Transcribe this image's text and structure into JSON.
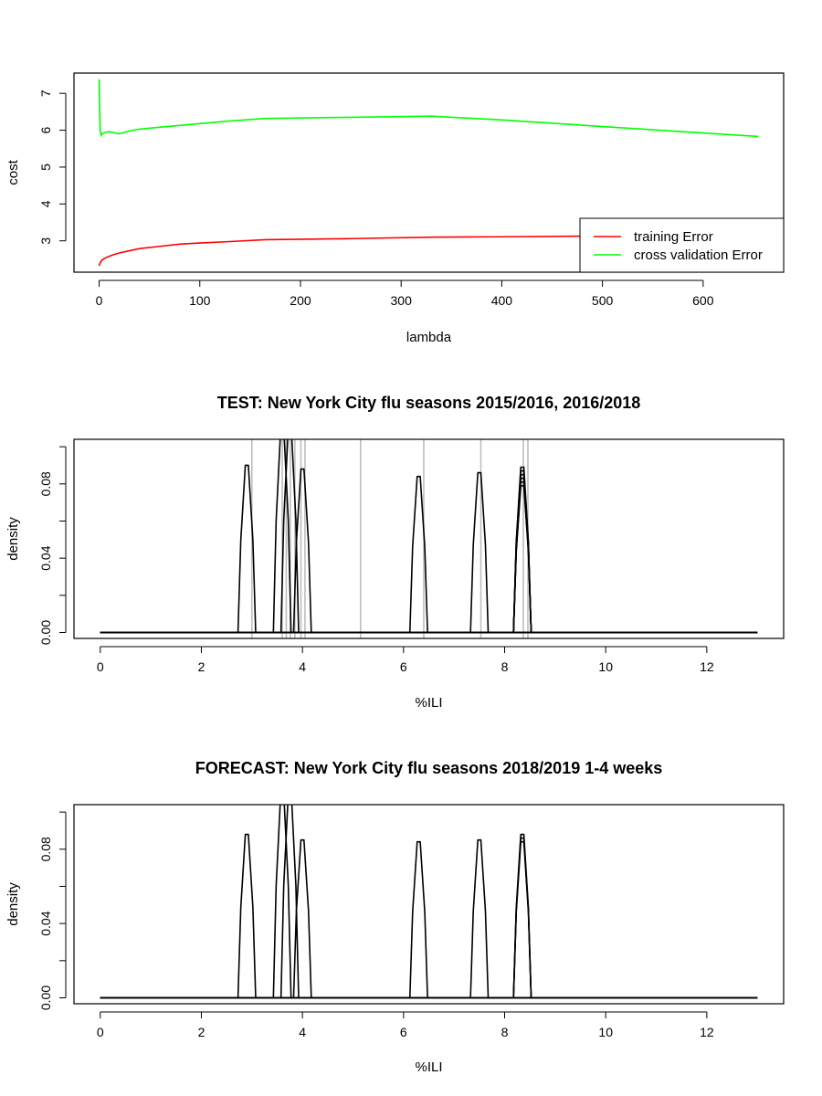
{
  "chart_data": [
    {
      "type": "line",
      "title": "",
      "xlabel": "lambda",
      "ylabel": "cost",
      "xlim": [
        -25,
        680
      ],
      "ylim": [
        2.15,
        7.55
      ],
      "xticks": [
        0,
        100,
        200,
        300,
        400,
        500,
        600
      ],
      "yticks": [
        3,
        4,
        5,
        6,
        7
      ],
      "legend_position": "bottom-right",
      "series": [
        {
          "name": "training Error",
          "color": "#ff0000",
          "x": [
            0,
            1,
            2,
            3,
            5,
            8,
            10,
            15,
            20,
            30,
            40,
            60,
            80,
            100,
            130,
            165,
            250,
            330,
            400,
            500,
            655
          ],
          "y": [
            2.32,
            2.4,
            2.45,
            2.48,
            2.52,
            2.56,
            2.58,
            2.63,
            2.67,
            2.73,
            2.79,
            2.85,
            2.91,
            2.94,
            2.98,
            3.03,
            3.06,
            3.1,
            3.11,
            3.13,
            3.15
          ]
        },
        {
          "name": "cross validation Error",
          "color": "#00ff00",
          "x": [
            0,
            0.5,
            1,
            2,
            3,
            5,
            10,
            15,
            20,
            25,
            30,
            40,
            60,
            80,
            100,
            130,
            165,
            250,
            330,
            400,
            500,
            655
          ],
          "y": [
            7.38,
            6.6,
            6.0,
            5.86,
            5.9,
            5.93,
            5.96,
            5.93,
            5.9,
            5.94,
            5.98,
            6.03,
            6.08,
            6.13,
            6.18,
            6.25,
            6.32,
            6.35,
            6.38,
            6.28,
            6.1,
            5.83
          ]
        }
      ]
    },
    {
      "type": "line",
      "title": "TEST: New York City  flu seasons 2015/2016, 2016/2018",
      "xlabel": "%ILI",
      "ylabel": "density",
      "xlim": [
        -0.52,
        13.52
      ],
      "ylim": [
        -0.0032,
        0.104
      ],
      "xticks": [
        0,
        2,
        4,
        6,
        8,
        10,
        12
      ],
      "yticks": [
        0.0,
        0.02,
        0.04,
        0.06,
        0.08,
        0.1
      ],
      "ytick_labels": [
        "0.00",
        "",
        "0.04",
        "",
        "0.08",
        ""
      ],
      "observed_values": [
        3.0,
        3.6,
        3.68,
        3.76,
        3.85,
        3.97,
        4.05,
        5.15,
        6.4,
        7.53,
        8.37,
        8.46
      ],
      "observed_color": "#bebebe",
      "peaks": [
        {
          "center": 2.9,
          "height": 0.09
        },
        {
          "center": 3.6,
          "height": 0.11
        },
        {
          "center": 3.75,
          "height": 0.11
        },
        {
          "center": 4.0,
          "height": 0.088
        },
        {
          "center": 6.3,
          "height": 0.084
        },
        {
          "center": 7.5,
          "height": 0.086
        },
        {
          "center": 8.35,
          "height": 0.089
        },
        {
          "center": 8.35,
          "height": 0.087
        },
        {
          "center": 8.35,
          "height": 0.085
        },
        {
          "center": 8.35,
          "height": 0.083
        },
        {
          "center": 8.35,
          "height": 0.081
        },
        {
          "center": 8.35,
          "height": 0.079
        }
      ],
      "density_support": [
        0,
        13
      ]
    },
    {
      "type": "line",
      "title": "FORECAST: New York City flu seasons 2018/2019 1-4 weeks",
      "xlabel": "%ILI",
      "ylabel": "density",
      "xlim": [
        -0.52,
        13.52
      ],
      "ylim": [
        -0.0032,
        0.104
      ],
      "xticks": [
        0,
        2,
        4,
        6,
        8,
        10,
        12
      ],
      "yticks": [
        0.0,
        0.02,
        0.04,
        0.06,
        0.08,
        0.1
      ],
      "ytick_labels": [
        "0.00",
        "",
        "0.04",
        "",
        "0.08",
        ""
      ],
      "observed_values": [],
      "peaks": [
        {
          "center": 2.9,
          "height": 0.088
        },
        {
          "center": 3.6,
          "height": 0.11
        },
        {
          "center": 3.75,
          "height": 0.11
        },
        {
          "center": 4.0,
          "height": 0.085
        },
        {
          "center": 6.3,
          "height": 0.084
        },
        {
          "center": 7.5,
          "height": 0.085
        },
        {
          "center": 8.35,
          "height": 0.088
        },
        {
          "center": 8.35,
          "height": 0.086
        },
        {
          "center": 8.35,
          "height": 0.084
        }
      ],
      "density_support": [
        0,
        13
      ]
    }
  ]
}
